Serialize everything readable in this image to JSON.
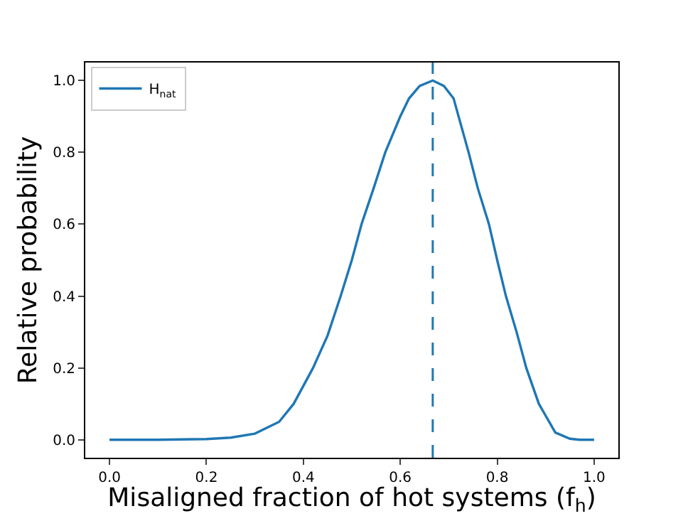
{
  "chart_data": {
    "type": "line",
    "xlabel": "Misaligned fraction of hot systems (f$_{h}$)",
    "ylabel": "Relative probability",
    "series": [
      {
        "name": "H$_{nat}$",
        "color": "#1f77b4",
        "x": [
          0,
          0.1,
          0.2,
          0.25,
          0.3,
          0.35,
          0.38,
          0.42,
          0.45,
          0.477,
          0.5,
          0.52,
          0.545,
          0.569,
          0.6,
          0.618,
          0.64,
          0.667,
          0.69,
          0.71,
          0.741,
          0.76,
          0.783,
          0.8,
          0.818,
          0.84,
          0.86,
          0.886,
          0.92,
          0.95,
          0.97,
          1.0
        ],
        "values": [
          0,
          0,
          0.002,
          0.006,
          0.017,
          0.05,
          0.1,
          0.2,
          0.29,
          0.4,
          0.5,
          0.6,
          0.7,
          0.8,
          0.9,
          0.95,
          0.985,
          1.0,
          0.985,
          0.95,
          0.8,
          0.7,
          0.6,
          0.5,
          0.4,
          0.3,
          0.2,
          0.1,
          0.02,
          0.003,
          0,
          0
        ]
      }
    ],
    "ref_lines": [
      {
        "axis": "x",
        "value": 0.667,
        "color": "#1f77b4",
        "line_style": "dashed"
      }
    ],
    "xlim": [
      -0.05,
      1.05
    ],
    "xticks": [
      {
        "value": 0,
        "label": "0.0"
      },
      {
        "value": 0.2,
        "label": "0.2"
      },
      {
        "value": 0.4,
        "label": "0.4"
      },
      {
        "value": 0.6,
        "label": "0.6"
      },
      {
        "value": 0.8,
        "label": "0.8"
      },
      {
        "value": 1,
        "label": "1.0"
      }
    ],
    "ylim": [
      -0.05,
      1.05
    ],
    "yticks": [
      {
        "value": 0,
        "label": "0.0"
      },
      {
        "value": 0.2,
        "label": "0.2"
      },
      {
        "value": 0.4,
        "label": "0.4"
      },
      {
        "value": 0.6,
        "label": "0.6"
      },
      {
        "value": 0.8,
        "label": "0.8"
      },
      {
        "value": 1,
        "label": "1.0"
      }
    ],
    "grid": false,
    "legend": "top left",
    "marker": "none",
    "line_style": "solid"
  }
}
